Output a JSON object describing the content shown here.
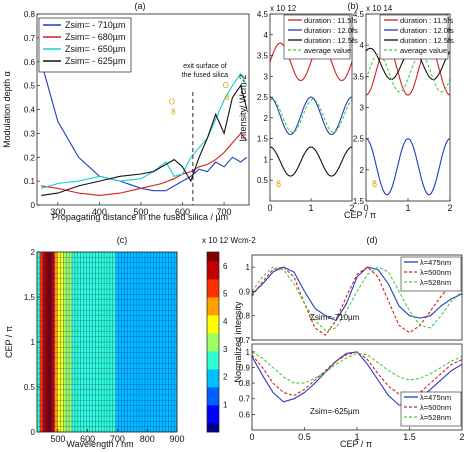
{
  "chart_data": [
    {
      "panel": "(a)",
      "type": "line",
      "xlabel": "Propagating distance in the fused silica / µm",
      "ylabel": "Modulation depth α",
      "xlim": [
        250,
        760
      ],
      "ylim": [
        0,
        0.8
      ],
      "xticks": [
        "300",
        "400",
        "500",
        "600",
        "700"
      ],
      "yticks": [
        "0",
        "0.1",
        "0.2",
        "0.3",
        "0.4",
        "0.5",
        "0.6",
        "0.7",
        "0.8"
      ],
      "legend_position": "top-left",
      "annotation": "exit surface of the fused silica",
      "annotation_x": 625,
      "markers": [
        "O",
        "8",
        "O",
        "8"
      ],
      "series": [
        {
          "name": "Zsim= - 710µm",
          "color": "#1f3fbf",
          "x": [
            260,
            300,
            350,
            400,
            450,
            500,
            530,
            560,
            580,
            600,
            620,
            640,
            660,
            680,
            700,
            720,
            740,
            755
          ],
          "y": [
            0.6,
            0.35,
            0.2,
            0.12,
            0.1,
            0.07,
            0.06,
            0.06,
            0.08,
            0.1,
            0.12,
            0.15,
            0.14,
            0.18,
            0.16,
            0.2,
            0.18,
            0.2
          ]
        },
        {
          "name": "Zsim= - 680µm",
          "color": "#d42020",
          "x": [
            260,
            300,
            350,
            400,
            450,
            500,
            550,
            580,
            600,
            620,
            640,
            660,
            680,
            700,
            720,
            740,
            755
          ],
          "y": [
            0.08,
            0.07,
            0.05,
            0.04,
            0.05,
            0.07,
            0.09,
            0.11,
            0.13,
            0.14,
            0.16,
            0.17,
            0.19,
            0.22,
            0.26,
            0.3,
            0.27
          ]
        },
        {
          "name": "Zsim= - 650µm",
          "color": "#10d0d8",
          "x": [
            260,
            300,
            350,
            400,
            450,
            500,
            530,
            560,
            580,
            600,
            620,
            640,
            660,
            680,
            700,
            720,
            740,
            755
          ],
          "y": [
            0.07,
            0.09,
            0.1,
            0.12,
            0.1,
            0.11,
            0.14,
            0.18,
            0.12,
            0.13,
            0.2,
            0.24,
            0.28,
            0.36,
            0.44,
            0.5,
            0.55,
            0.5
          ]
        },
        {
          "name": "Zsim= - 625µm",
          "color": "#111111",
          "x": [
            260,
            300,
            350,
            400,
            450,
            500,
            530,
            560,
            580,
            600,
            620,
            640,
            660,
            680,
            700,
            720,
            740,
            755
          ],
          "y": [
            0.04,
            0.05,
            0.08,
            0.1,
            0.12,
            0.13,
            0.14,
            0.17,
            0.19,
            0.16,
            0.1,
            0.2,
            0.28,
            0.38,
            0.3,
            0.45,
            0.5,
            0.4
          ]
        }
      ]
    },
    {
      "panel": "(b)",
      "type": "line",
      "scale_label": "x 10^12",
      "ylabel": "Intensity/ Wcm-2",
      "xlim": [
        0,
        2
      ],
      "ylim": [
        0,
        4.5
      ],
      "xticks": [
        "0",
        "1",
        "2"
      ],
      "yticks": [
        "0.5",
        "1",
        "1.5",
        "2",
        "2.5",
        "3",
        "3.5",
        "4",
        "4.5"
      ],
      "marker": "8",
      "legend_position": "top",
      "series": [
        {
          "name": "duration : 11.5fs",
          "color": "#d42020",
          "period": 1,
          "offset": 3.35,
          "amp": 0.45,
          "phase": 0.25
        },
        {
          "name": "duration : 12.0fs",
          "color": "#1f3fbf",
          "period": 1,
          "offset": 2.05,
          "amp": 0.45,
          "phase": 0.0
        },
        {
          "name": "duration : 12.5fs",
          "color": "#111111",
          "period": 1,
          "offset": 0.95,
          "amp": 0.35,
          "phase": 0.0
        },
        {
          "name": "average value",
          "color": "#44cc44",
          "dashed": true,
          "period": 1,
          "offset": 2.05,
          "amp": 0.4,
          "phase": 0.05
        }
      ]
    },
    {
      "panel": "(b) right",
      "type": "line",
      "scale_label": "x 10^14",
      "xlim": [
        0,
        2
      ],
      "ylim": [
        1.5,
        4.5
      ],
      "xticks": [
        "0",
        "1",
        "2"
      ],
      "yticks": [
        "1.5",
        "2",
        "2.5",
        "3",
        "3.5",
        "4",
        "4.5"
      ],
      "marker": "8",
      "legend_position": "top",
      "series": [
        {
          "name": "duration : 11.5fs",
          "color": "#d42020",
          "period": 1,
          "offset": 3.6,
          "amp": 0.4,
          "phase": 0.5
        },
        {
          "name": "duration : 12.0fs",
          "color": "#1f3fbf",
          "period": 1,
          "offset": 2.05,
          "amp": 0.45,
          "phase": 0.0
        },
        {
          "name": "duration : 12.5fs",
          "color": "#111111",
          "period": 1,
          "offset": 3.7,
          "amp": 0.25,
          "phase": 0.1
        },
        {
          "name": "average value",
          "color": "#44cc44",
          "dashed": true,
          "period": 1,
          "offset": 3.55,
          "amp": 0.3,
          "phase": 0.3
        }
      ]
    },
    {
      "panel": "(c)",
      "type": "heatmap",
      "xlabel": "Wavelength / nm",
      "ylabel": "CEP / π",
      "xlim": [
        430,
        900
      ],
      "ylim": [
        0,
        2
      ],
      "xticks": [
        "500",
        "600",
        "700",
        "800",
        "900"
      ],
      "yticks": [
        "0",
        "0.5",
        "1",
        "1.5",
        "2"
      ],
      "colorbar_label": "x 10^12 Wcm-2",
      "colorbar_range": [
        0,
        6.5
      ],
      "colorbar_ticks": [
        "1",
        "2",
        "3",
        "4",
        "5",
        "6"
      ]
    },
    {
      "panel": "(d)",
      "type": "line",
      "xlabel": "CEP / π",
      "ylabel": "Normalized intensity",
      "xlim": [
        0,
        2
      ],
      "xticks": [
        "0",
        "0.5",
        "1",
        "1.5",
        "2"
      ],
      "subplots": [
        {
          "annotation": "Zsim=-710µm",
          "ylim": [
            0.7,
            1.05
          ],
          "yticks": [
            "0.7",
            "0.8",
            "0.9",
            "1"
          ],
          "series": [
            {
              "name": "λ=475nm",
              "color": "#1f3fbf",
              "dashed": false,
              "x": [
                0,
                0.1,
                0.2,
                0.3,
                0.4,
                0.5,
                0.6,
                0.7,
                0.8,
                0.9,
                1,
                1.1,
                1.2,
                1.3,
                1.4,
                1.5,
                1.6,
                1.7,
                1.8,
                1.9,
                2
              ],
              "y": [
                0.89,
                0.93,
                0.98,
                1.0,
                0.98,
                0.9,
                0.83,
                0.8,
                0.78,
                0.85,
                0.96,
                1.0,
                0.99,
                0.93,
                0.84,
                0.8,
                0.79,
                0.8,
                0.84,
                0.87,
                0.89
              ]
            },
            {
              "name": "λ=500nm",
              "color": "#d42020",
              "dashed": true,
              "x": [
                0,
                0.1,
                0.2,
                0.3,
                0.4,
                0.5,
                0.6,
                0.7,
                0.8,
                0.9,
                1,
                1.1,
                1.2,
                1.3,
                1.4,
                1.5,
                1.6,
                1.7,
                1.8,
                1.9,
                2
              ],
              "y": [
                0.88,
                0.94,
                0.99,
                1.0,
                0.96,
                0.85,
                0.75,
                0.72,
                0.78,
                0.88,
                0.97,
                1.0,
                0.96,
                0.86,
                0.76,
                0.73,
                0.76,
                0.82,
                0.88,
                0.93,
                0.95
              ]
            },
            {
              "name": "λ=528nm",
              "color": "#44cc44",
              "dashed": true,
              "x": [
                0,
                0.1,
                0.2,
                0.3,
                0.4,
                0.5,
                0.6,
                0.7,
                0.8,
                0.9,
                1,
                1.1,
                1.2,
                1.3,
                1.4,
                1.5,
                1.6,
                1.7,
                1.8,
                1.9,
                2
              ],
              "y": [
                0.9,
                0.96,
                1.0,
                0.99,
                0.93,
                0.85,
                0.78,
                0.74,
                0.75,
                0.82,
                0.9,
                0.97,
                1.0,
                0.98,
                0.9,
                0.82,
                0.76,
                0.75,
                0.8,
                0.86,
                0.9
              ]
            }
          ]
        },
        {
          "annotation": "Zsim=-625µm",
          "ylim": [
            0.5,
            1.05
          ],
          "yticks": [
            "0.6",
            "0.7",
            "0.8",
            "0.9",
            "1"
          ],
          "series": [
            {
              "name": "λ=475nm",
              "color": "#1f3fbf",
              "dashed": false,
              "x": [
                0,
                0.1,
                0.2,
                0.3,
                0.4,
                0.5,
                0.6,
                0.7,
                0.8,
                0.9,
                1,
                1.1,
                1.2,
                1.3,
                1.4,
                1.5,
                1.6,
                1.7,
                1.8,
                1.9,
                2
              ],
              "y": [
                0.97,
                0.85,
                0.74,
                0.68,
                0.7,
                0.74,
                0.8,
                0.87,
                0.94,
                0.99,
                1.0,
                0.92,
                0.82,
                0.72,
                0.66,
                0.66,
                0.7,
                0.76,
                0.82,
                0.88,
                0.92
              ]
            },
            {
              "name": "λ=500nm",
              "color": "#d42020",
              "dashed": true,
              "x": [
                0,
                0.1,
                0.2,
                0.3,
                0.4,
                0.5,
                0.6,
                0.7,
                0.8,
                0.9,
                1,
                1.1,
                1.2,
                1.3,
                1.4,
                1.5,
                1.6,
                1.7,
                1.8,
                1.9,
                2
              ],
              "y": [
                0.98,
                0.9,
                0.8,
                0.74,
                0.72,
                0.76,
                0.82,
                0.88,
                0.94,
                0.98,
                1.0,
                0.95,
                0.86,
                0.78,
                0.73,
                0.72,
                0.74,
                0.8,
                0.86,
                0.92,
                0.95
              ]
            },
            {
              "name": "λ=528nm",
              "color": "#44cc44",
              "dashed": true,
              "x": [
                0,
                0.1,
                0.2,
                0.3,
                0.4,
                0.5,
                0.6,
                0.7,
                0.8,
                0.9,
                1,
                1.1,
                1.2,
                1.3,
                1.4,
                1.5,
                1.6,
                1.7,
                1.8,
                1.9,
                2
              ],
              "y": [
                1.0,
                0.96,
                0.9,
                0.84,
                0.8,
                0.8,
                0.83,
                0.87,
                0.92,
                0.96,
                0.99,
                0.98,
                0.93,
                0.88,
                0.84,
                0.82,
                0.83,
                0.86,
                0.9,
                0.94,
                0.97
              ]
            }
          ]
        }
      ]
    }
  ]
}
